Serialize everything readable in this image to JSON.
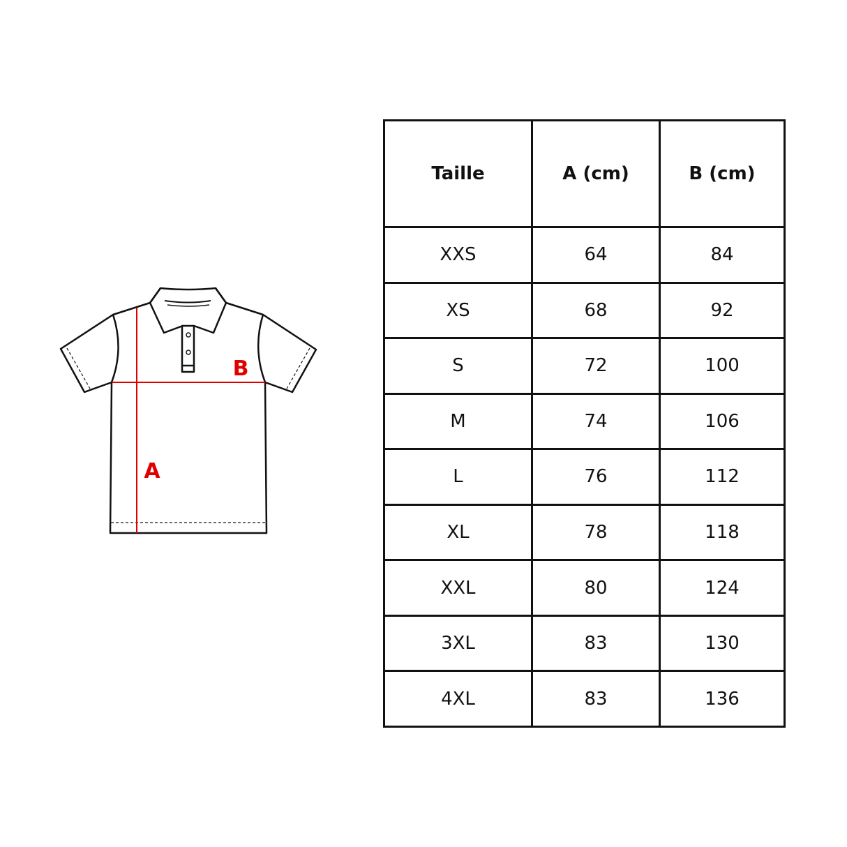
{
  "diagram": {
    "label_a": "A",
    "label_b": "B",
    "measure_color": "#e00000",
    "outline_color": "#111111"
  },
  "table": {
    "headers": [
      "Taille",
      "A (cm)",
      "B (cm)"
    ],
    "rows": [
      [
        "XXS",
        "64",
        "84"
      ],
      [
        "XS",
        "68",
        "92"
      ],
      [
        "S",
        "72",
        "100"
      ],
      [
        "M",
        "74",
        "106"
      ],
      [
        "L",
        "76",
        "112"
      ],
      [
        "XL",
        "78",
        "118"
      ],
      [
        "XXL",
        "80",
        "124"
      ],
      [
        "3XL",
        "83",
        "130"
      ],
      [
        "4XL",
        "83",
        "136"
      ]
    ]
  }
}
